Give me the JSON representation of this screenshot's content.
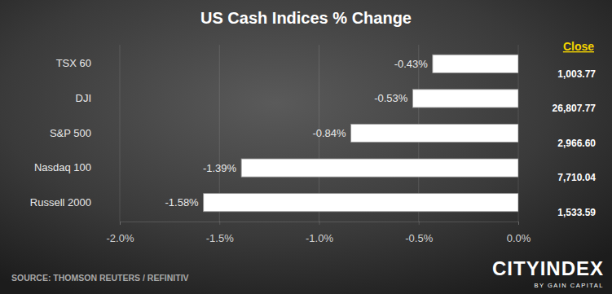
{
  "chart_data": {
    "type": "bar",
    "title": "US Cash Indices % Change",
    "orientation": "horizontal",
    "categories": [
      "TSX 60",
      "DJI",
      "S&P 500",
      "Nasdaq 100",
      "Russell 2000"
    ],
    "values": [
      -0.43,
      -0.53,
      -0.84,
      -1.39,
      -1.58
    ],
    "value_labels": [
      "-0.43%",
      "-0.53%",
      "-0.84%",
      "-1.39%",
      "-1.58%"
    ],
    "data_labels": true,
    "color": "#ffffff",
    "xlim": [
      -2,
      0
    ],
    "xticks": [
      {
        "value": -2,
        "label": "-2.0%"
      },
      {
        "value": -1.5,
        "label": "-1.5%"
      },
      {
        "value": -1,
        "label": "-1.0%"
      },
      {
        "value": -0.5,
        "label": "-0.5%"
      },
      {
        "value": 0,
        "label": "0.0%"
      }
    ],
    "grid": true,
    "close_header": "Close",
    "close_values": [
      {
        "value": 1003.77,
        "label": "1,003.77"
      },
      {
        "value": 26807.77,
        "label": "26,807.77"
      },
      {
        "value": 2966.6,
        "label": "2,966.60"
      },
      {
        "value": 7710.04,
        "label": "7,710.04"
      },
      {
        "value": 1533.59,
        "label": "1,533.59"
      }
    ],
    "source": "SOURCE: THOMSON REUTERS / REFINITIV",
    "logo": "CITYINDEX",
    "logo_subtitle": "BY GAIN CAPITAL"
  }
}
